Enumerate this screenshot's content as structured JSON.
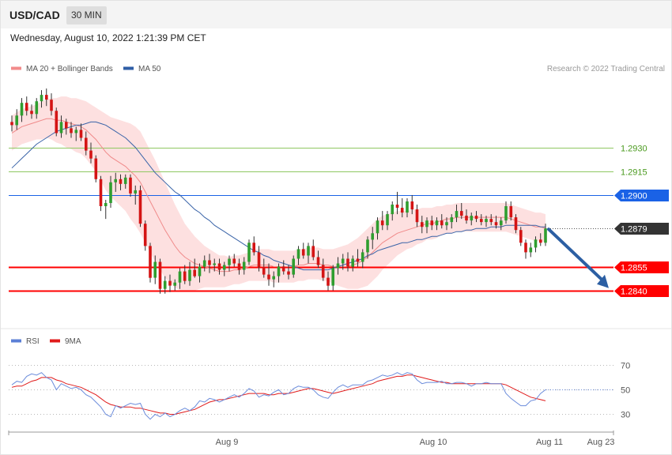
{
  "header": {
    "symbol": "USD/CAD",
    "timeframe": "30 MIN",
    "datetime": "Wednesday, August 10, 2022 1:21:39 PM CET"
  },
  "chart_data": [
    {
      "type": "candlestick",
      "legend": [
        {
          "name": "MA 20 + Bollinger Bands",
          "color": "#f28b8b"
        },
        {
          "name": "MA 50",
          "color": "#2f5ea6"
        }
      ],
      "credit": "Research © 2022 Trading Central",
      "ylim": [
        1.2819,
        1.2973
      ],
      "levels": [
        {
          "value": 1.293,
          "label": "1.2930",
          "kind": "resistance-green",
          "color": "#8fc862",
          "text_color": "#4a9a1e"
        },
        {
          "value": 1.2915,
          "label": "1.2915",
          "kind": "resistance-green",
          "color": "#8fc862",
          "text_color": "#4a9a1e"
        },
        {
          "value": 1.29,
          "label": "1.2900",
          "kind": "pivot",
          "color": "#1a62e6",
          "text_color": "#ffffff"
        },
        {
          "value": 1.2879,
          "label": "1.2879",
          "kind": "last-price",
          "color": "#333333",
          "text_color": "#ffffff"
        },
        {
          "value": 1.2855,
          "label": "1.2855",
          "kind": "support",
          "color": "#ff0000",
          "text_color": "#ffffff"
        },
        {
          "value": 1.284,
          "label": "1.2840",
          "kind": "support",
          "color": "#ff0000",
          "text_color": "#ffffff"
        }
      ],
      "projection": {
        "from": 1.2879,
        "to": 1.2841,
        "color": "#2c5fa3"
      },
      "ohlc": [
        [
          1.2946,
          1.295,
          1.294,
          1.2944
        ],
        [
          1.2944,
          1.2954,
          1.2941,
          1.295
        ],
        [
          1.295,
          1.2961,
          1.2946,
          1.2958
        ],
        [
          1.2958,
          1.2962,
          1.295,
          1.2953
        ],
        [
          1.2953,
          1.2957,
          1.2948,
          1.2951
        ],
        [
          1.2951,
          1.2961,
          1.2948,
          1.2959
        ],
        [
          1.2959,
          1.2966,
          1.2955,
          1.2963
        ],
        [
          1.2963,
          1.2967,
          1.2956,
          1.296
        ],
        [
          1.296,
          1.2964,
          1.295,
          1.2953
        ],
        [
          1.2953,
          1.2955,
          1.2937,
          1.2939
        ],
        [
          1.2939,
          1.295,
          1.2936,
          1.2946
        ],
        [
          1.2946,
          1.2948,
          1.2938,
          1.2942
        ],
        [
          1.2942,
          1.2946,
          1.2936,
          1.2939
        ],
        [
          1.2939,
          1.2943,
          1.2934,
          1.2941
        ],
        [
          1.2941,
          1.2945,
          1.2934,
          1.2936
        ],
        [
          1.2936,
          1.294,
          1.2925,
          1.2928
        ],
        [
          1.2928,
          1.2933,
          1.292,
          1.2923
        ],
        [
          1.2923,
          1.2925,
          1.2908,
          1.291
        ],
        [
          1.291,
          1.2912,
          1.289,
          1.2893
        ],
        [
          1.2893,
          1.2897,
          1.2885,
          1.2895
        ],
        [
          1.2895,
          1.2912,
          1.2892,
          1.2908
        ],
        [
          1.2908,
          1.2914,
          1.2902,
          1.291
        ],
        [
          1.291,
          1.2913,
          1.2903,
          1.2907
        ],
        [
          1.2907,
          1.2913,
          1.2904,
          1.2911
        ],
        [
          1.2911,
          1.2913,
          1.2899,
          1.2901
        ],
        [
          1.2901,
          1.2906,
          1.2894,
          1.2903
        ],
        [
          1.2903,
          1.2906,
          1.288,
          1.2882
        ],
        [
          1.2882,
          1.2884,
          1.2865,
          1.2868
        ],
        [
          1.2868,
          1.287,
          1.2845,
          1.2848
        ],
        [
          1.2848,
          1.2862,
          1.2844,
          1.2858
        ],
        [
          1.2858,
          1.286,
          1.2838,
          1.2841
        ],
        [
          1.2841,
          1.2849,
          1.2838,
          1.2846
        ],
        [
          1.2846,
          1.285,
          1.2839,
          1.2843
        ],
        [
          1.2843,
          1.2847,
          1.284,
          1.2845
        ],
        [
          1.2845,
          1.2854,
          1.2841,
          1.2852
        ],
        [
          1.2852,
          1.2856,
          1.2844,
          1.2846
        ],
        [
          1.2846,
          1.2858,
          1.2843,
          1.2853
        ],
        [
          1.2853,
          1.286,
          1.2848,
          1.2849
        ],
        [
          1.2849,
          1.2857,
          1.2845,
          1.2855
        ],
        [
          1.2855,
          1.2862,
          1.2852,
          1.2859
        ],
        [
          1.2859,
          1.2863,
          1.2851,
          1.2856
        ],
        [
          1.2856,
          1.286,
          1.2852,
          1.2857
        ],
        [
          1.2857,
          1.286,
          1.285,
          1.2853
        ],
        [
          1.2853,
          1.2858,
          1.2849,
          1.2856
        ],
        [
          1.2856,
          1.2862,
          1.2852,
          1.286
        ],
        [
          1.286,
          1.2863,
          1.2855,
          1.2857
        ],
        [
          1.2857,
          1.286,
          1.285,
          1.2853
        ],
        [
          1.2853,
          1.2861,
          1.285,
          1.2858
        ],
        [
          1.2858,
          1.2872,
          1.2856,
          1.287
        ],
        [
          1.287,
          1.2874,
          1.2862,
          1.2864
        ],
        [
          1.2864,
          1.2868,
          1.2852,
          1.2855
        ],
        [
          1.2855,
          1.286,
          1.2848,
          1.285
        ],
        [
          1.285,
          1.2857,
          1.2843,
          1.2847
        ],
        [
          1.2847,
          1.2852,
          1.2842,
          1.2849
        ],
        [
          1.2849,
          1.2857,
          1.2845,
          1.2855
        ],
        [
          1.2855,
          1.2859,
          1.285,
          1.2852
        ],
        [
          1.2852,
          1.2856,
          1.2847,
          1.285
        ],
        [
          1.285,
          1.2862,
          1.2848,
          1.286
        ],
        [
          1.286,
          1.2868,
          1.2856,
          1.2866
        ],
        [
          1.2866,
          1.287,
          1.286,
          1.2862
        ],
        [
          1.2862,
          1.287,
          1.2857,
          1.2868
        ],
        [
          1.2868,
          1.2872,
          1.2859,
          1.2861
        ],
        [
          1.2861,
          1.2865,
          1.2854,
          1.2856
        ],
        [
          1.2856,
          1.286,
          1.2846,
          1.2848
        ],
        [
          1.2848,
          1.2852,
          1.284,
          1.2843
        ],
        [
          1.2843,
          1.2856,
          1.284,
          1.2854
        ],
        [
          1.2854,
          1.2861,
          1.285,
          1.2857
        ],
        [
          1.2857,
          1.2863,
          1.2853,
          1.286
        ],
        [
          1.286,
          1.2864,
          1.2852,
          1.2855
        ],
        [
          1.2855,
          1.2862,
          1.2852,
          1.286
        ],
        [
          1.286,
          1.2866,
          1.2855,
          1.2858
        ],
        [
          1.2858,
          1.2866,
          1.2854,
          1.2864
        ],
        [
          1.2864,
          1.2874,
          1.286,
          1.2872
        ],
        [
          1.2872,
          1.288,
          1.2866,
          1.2876
        ],
        [
          1.2876,
          1.2886,
          1.2872,
          1.2884
        ],
        [
          1.2884,
          1.289,
          1.2878,
          1.2881
        ],
        [
          1.2881,
          1.289,
          1.2878,
          1.2888
        ],
        [
          1.2888,
          1.2896,
          1.2884,
          1.2894
        ],
        [
          1.2894,
          1.2902,
          1.2888,
          1.2892
        ],
        [
          1.2892,
          1.2898,
          1.2886,
          1.2889
        ],
        [
          1.2889,
          1.2898,
          1.2886,
          1.2896
        ],
        [
          1.2896,
          1.29,
          1.2888,
          1.2891
        ],
        [
          1.2891,
          1.2894,
          1.288,
          1.2883
        ],
        [
          1.2883,
          1.2887,
          1.2876,
          1.288
        ],
        [
          1.288,
          1.2886,
          1.2876,
          1.2884
        ],
        [
          1.2884,
          1.2887,
          1.2878,
          1.2881
        ],
        [
          1.2881,
          1.2886,
          1.2878,
          1.2884
        ],
        [
          1.2884,
          1.2888,
          1.2879,
          1.2881
        ],
        [
          1.2881,
          1.2886,
          1.2878,
          1.2883
        ],
        [
          1.2883,
          1.2888,
          1.2879,
          1.2886
        ],
        [
          1.2886,
          1.2894,
          1.2883,
          1.289
        ],
        [
          1.289,
          1.2895,
          1.2885,
          1.2887
        ],
        [
          1.2887,
          1.2891,
          1.2882,
          1.2884
        ],
        [
          1.2884,
          1.2889,
          1.2881,
          1.2887
        ],
        [
          1.2887,
          1.289,
          1.2883,
          1.2885
        ],
        [
          1.2885,
          1.2888,
          1.2881,
          1.2883
        ],
        [
          1.2883,
          1.2887,
          1.288,
          1.2885
        ],
        [
          1.2885,
          1.2888,
          1.2881,
          1.2883
        ],
        [
          1.2883,
          1.2887,
          1.2879,
          1.2881
        ],
        [
          1.2881,
          1.2886,
          1.2878,
          1.2884
        ],
        [
          1.2884,
          1.2896,
          1.2882,
          1.2893
        ],
        [
          1.2893,
          1.2896,
          1.2884,
          1.2886
        ],
        [
          1.2886,
          1.2888,
          1.2876,
          1.2878
        ],
        [
          1.2878,
          1.288,
          1.2868,
          1.287
        ],
        [
          1.287,
          1.2872,
          1.286,
          1.2864
        ],
        [
          1.2864,
          1.287,
          1.2861,
          1.2867
        ],
        [
          1.2867,
          1.2874,
          1.2864,
          1.2872
        ],
        [
          1.2872,
          1.2876,
          1.2868,
          1.287
        ],
        [
          1.287,
          1.2882,
          1.2868,
          1.2879
        ]
      ],
      "ma20": [
        1.2939,
        1.2941,
        1.2943,
        1.2944,
        1.2945,
        1.2946,
        1.2947,
        1.2948,
        1.2948,
        1.2947,
        1.2947,
        1.2946,
        1.2945,
        1.2944,
        1.2943,
        1.2941,
        1.2938,
        1.2935,
        1.2931,
        1.2927,
        1.2924,
        1.2922,
        1.292,
        1.2918,
        1.2915,
        1.2912,
        1.2908,
        1.2902,
        1.2896,
        1.289,
        1.2884,
        1.2878,
        1.2873,
        1.2868,
        1.2864,
        1.2861,
        1.2859,
        1.2857,
        1.2856,
        1.2855,
        1.2854,
        1.2853,
        1.2852,
        1.2852,
        1.2852,
        1.2853,
        1.2853,
        1.2854,
        1.2855,
        1.2856,
        1.2856,
        1.2856,
        1.2856,
        1.2855,
        1.2855,
        1.2855,
        1.2855,
        1.2855,
        1.2856,
        1.2856,
        1.2857,
        1.2857,
        1.2857,
        1.2856,
        1.2856,
        1.2855,
        1.2855,
        1.2855,
        1.2855,
        1.2856,
        1.2857,
        1.2859,
        1.2861,
        1.2864,
        1.2867,
        1.287,
        1.2872,
        1.2874,
        1.2876,
        1.2877,
        1.2878,
        1.2879,
        1.288,
        1.2881,
        1.2882,
        1.2882,
        1.2883,
        1.2884,
        1.2885,
        1.2885,
        1.2886,
        1.2886,
        1.2886,
        1.2886,
        1.2886,
        1.2886,
        1.2886,
        1.2886,
        1.2886,
        1.2886,
        1.2886,
        1.2885,
        1.2884,
        1.2883,
        1.2882,
        1.2881,
        1.288,
        1.288,
        1.2879
      ],
      "bb_width": [
        11,
        11,
        11,
        11,
        11,
        11,
        12,
        12,
        13,
        14,
        15,
        16,
        16,
        17,
        17,
        18,
        19,
        20,
        22,
        24,
        25,
        26,
        27,
        28,
        30,
        31,
        32,
        32,
        32,
        32,
        31,
        30,
        28,
        26,
        24,
        21,
        19,
        17,
        15,
        13,
        12,
        11,
        10,
        10,
        9,
        9,
        9,
        9,
        9,
        10,
        10,
        10,
        10,
        10,
        10,
        10,
        10,
        10,
        10,
        10,
        10,
        10,
        10,
        10,
        10,
        11,
        12,
        13,
        14,
        15,
        16,
        17,
        18,
        18,
        18,
        17,
        16,
        15,
        14,
        13,
        12,
        12,
        11,
        11,
        10,
        10,
        10,
        9,
        9,
        9,
        9,
        9,
        9,
        9,
        9,
        9,
        9,
        9,
        9,
        9,
        9,
        9,
        9,
        9,
        9,
        9,
        9,
        9,
        9
      ],
      "ma50": [
        1.2917,
        1.292,
        1.2923,
        1.2926,
        1.2929,
        1.2932,
        1.2934,
        1.2936,
        1.2938,
        1.294,
        1.2941,
        1.2942,
        1.2943,
        1.2944,
        1.2944,
        1.2945,
        1.2946,
        1.2946,
        1.2945,
        1.2944,
        1.2942,
        1.294,
        1.2938,
        1.2936,
        1.2933,
        1.293,
        1.2926,
        1.2922,
        1.2918,
        1.2914,
        1.2911,
        1.2908,
        1.2905,
        1.2902,
        1.29,
        1.2897,
        1.2894,
        1.2891,
        1.2889,
        1.2886,
        1.2884,
        1.2881,
        1.2879,
        1.2877,
        1.2875,
        1.2873,
        1.2871,
        1.2869,
        1.2867,
        1.2865,
        1.2864,
        1.2862,
        1.2861,
        1.2859,
        1.2858,
        1.2857,
        1.2856,
        1.2855,
        1.2854,
        1.2853,
        1.2853,
        1.2853,
        1.2853,
        1.2853,
        1.2853,
        1.2854,
        1.2855,
        1.2856,
        1.2857,
        1.2858,
        1.2859,
        1.286,
        1.2862,
        1.2863,
        1.2865,
        1.2866,
        1.2867,
        1.2868,
        1.2869,
        1.287,
        1.287,
        1.2871,
        1.2872,
        1.2872,
        1.2873,
        1.2874,
        1.2874,
        1.2875,
        1.2876,
        1.2876,
        1.2877,
        1.2877,
        1.2878,
        1.2878,
        1.2879,
        1.2879,
        1.2879,
        1.288,
        1.288,
        1.288,
        1.2881,
        1.2881,
        1.2881,
        1.2881,
        1.2881,
        1.2881,
        1.2881,
        1.288,
        1.288
      ],
      "x_tick_labels": [
        "Aug 9",
        "Aug 10",
        "Aug 11",
        "Aug 23"
      ]
    },
    {
      "type": "line",
      "legend": [
        {
          "name": "RSI",
          "color": "#5b7fd6"
        },
        {
          "name": "9MA",
          "color": "#e01b1b"
        }
      ],
      "ylim": [
        20,
        78
      ],
      "y_ticks": [
        70,
        50,
        30
      ],
      "rsi": [
        54,
        57,
        56,
        61,
        63,
        62,
        64,
        60,
        58,
        50,
        55,
        53,
        51,
        52,
        50,
        46,
        44,
        40,
        36,
        30,
        28,
        37,
        35,
        37,
        39,
        38,
        39,
        30,
        26,
        30,
        28,
        31,
        28,
        30,
        33,
        35,
        33,
        36,
        41,
        40,
        43,
        42,
        40,
        42,
        44,
        46,
        44,
        47,
        51,
        49,
        44,
        46,
        45,
        48,
        50,
        46,
        47,
        51,
        53,
        52,
        52,
        50,
        46,
        44,
        43,
        48,
        52,
        54,
        52,
        54,
        54,
        54,
        57,
        58,
        60,
        62,
        61,
        62,
        64,
        62,
        64,
        63,
        58,
        55,
        56,
        56,
        56,
        57,
        55,
        55,
        56,
        56,
        55,
        53,
        55,
        55,
        56,
        55,
        55,
        55,
        47,
        43,
        40,
        37,
        37,
        41,
        42,
        47,
        50
      ],
      "ma9": [
        52,
        53,
        53,
        55,
        57,
        58,
        60,
        60,
        60,
        58,
        57,
        55,
        54,
        53,
        52,
        50,
        48,
        46,
        43,
        40,
        38,
        37,
        36,
        36,
        36,
        35,
        35,
        34,
        33,
        32,
        31,
        31,
        30,
        30,
        31,
        32,
        33,
        34,
        36,
        38,
        40,
        41,
        42,
        42,
        43,
        44,
        45,
        46,
        47,
        47,
        47,
        47,
        46,
        46,
        47,
        47,
        47,
        48,
        49,
        50,
        51,
        51,
        50,
        49,
        48,
        47,
        48,
        49,
        50,
        51,
        52,
        53,
        54,
        55,
        57,
        58,
        59,
        60,
        61,
        61,
        62,
        62,
        61,
        60,
        59,
        58,
        57,
        56,
        56,
        55,
        55,
        55,
        55,
        55,
        55,
        55,
        55,
        55,
        55,
        55,
        54,
        52,
        50,
        48,
        46,
        44,
        43,
        42,
        41
      ]
    }
  ]
}
